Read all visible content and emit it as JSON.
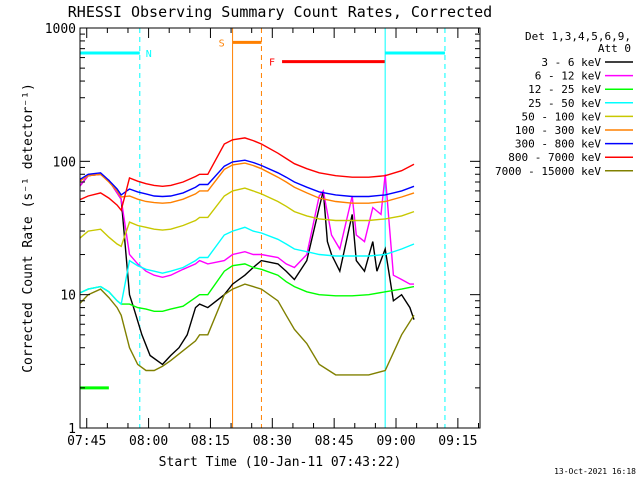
{
  "chart_data": {
    "type": "line",
    "title": "RHESSI Observing Summary Count Rates, Corrected",
    "xlabel": "Start Time (10-Jan-11 07:43:22)",
    "ylabel": "Corrected Count Rate (s⁻¹ detector⁻¹)",
    "yscale": "log",
    "ylim": [
      1,
      1000
    ],
    "xlim_minutes": [
      0,
      97
    ],
    "x_tick_labels": [
      "07:45",
      "08:00",
      "08:15",
      "08:30",
      "08:45",
      "09:00",
      "09:15"
    ],
    "y_tick_labels": [
      "1",
      "10",
      "100",
      "1000"
    ],
    "legend_header": [
      "Det 1,3,4,5,6,9,",
      "Att 0"
    ],
    "footer_date": "13-Oct-2021 16:18",
    "grid": false,
    "legend_position": "right",
    "series": [
      {
        "name": "3 - 6 keV",
        "color": "#000000",
        "points": [
          [
            -1,
            60
          ],
          [
            2,
            78
          ],
          [
            5,
            80
          ],
          [
            7,
            72
          ],
          [
            9,
            58
          ],
          [
            10,
            52
          ],
          [
            12,
            10
          ],
          [
            13,
            8
          ],
          [
            15,
            5
          ],
          [
            17,
            3.5
          ],
          [
            20,
            3
          ],
          [
            22,
            3.5
          ],
          [
            24,
            4
          ],
          [
            26,
            5
          ],
          [
            28,
            8
          ],
          [
            29,
            8.5
          ],
          [
            31,
            8
          ],
          [
            35,
            10
          ],
          [
            37,
            12
          ],
          [
            40,
            14
          ],
          [
            42,
            16
          ],
          [
            44,
            18
          ],
          [
            48,
            17
          ],
          [
            50,
            15
          ],
          [
            52,
            13
          ],
          [
            55,
            18
          ],
          [
            58,
            45
          ],
          [
            59,
            60
          ],
          [
            60,
            25
          ],
          [
            61,
            20
          ],
          [
            63,
            15
          ],
          [
            66,
            40
          ],
          [
            67,
            18
          ],
          [
            69,
            15
          ],
          [
            71,
            25
          ],
          [
            72,
            15
          ],
          [
            74,
            22
          ],
          [
            76,
            9
          ],
          [
            78,
            10
          ],
          [
            80,
            8
          ],
          [
            81,
            6.5
          ]
        ]
      },
      {
        "name": "6 - 12 keV",
        "color": "#ff00ff",
        "points": [
          [
            -1,
            60
          ],
          [
            2,
            78
          ],
          [
            5,
            80
          ],
          [
            7,
            72
          ],
          [
            9,
            58
          ],
          [
            10,
            52
          ],
          [
            12,
            20
          ],
          [
            14,
            17
          ],
          [
            16,
            15
          ],
          [
            18,
            14
          ],
          [
            20,
            13.5
          ],
          [
            22,
            14
          ],
          [
            25,
            15.5
          ],
          [
            28,
            17
          ],
          [
            29,
            18
          ],
          [
            31,
            17
          ],
          [
            35,
            18
          ],
          [
            37,
            20
          ],
          [
            40,
            21
          ],
          [
            42,
            20
          ],
          [
            44,
            20
          ],
          [
            48,
            19
          ],
          [
            50,
            17
          ],
          [
            52,
            16
          ],
          [
            55,
            20
          ],
          [
            58,
            55
          ],
          [
            59,
            60
          ],
          [
            61,
            28
          ],
          [
            63,
            22
          ],
          [
            66,
            55
          ],
          [
            67,
            28
          ],
          [
            69,
            25
          ],
          [
            71,
            45
          ],
          [
            73,
            40
          ],
          [
            74,
            80
          ],
          [
            76,
            14
          ],
          [
            78,
            13
          ],
          [
            80,
            12
          ],
          [
            81,
            12
          ]
        ]
      },
      {
        "name": "12 - 25 keV",
        "color": "#00ff00",
        "points": [
          [
            -1,
            10
          ],
          [
            2,
            11
          ],
          [
            5,
            11.5
          ],
          [
            7,
            10.5
          ],
          [
            9,
            9
          ],
          [
            10,
            8.5
          ],
          [
            12,
            8.5
          ],
          [
            14,
            8
          ],
          [
            16,
            7.8
          ],
          [
            18,
            7.5
          ],
          [
            20,
            7.5
          ],
          [
            22,
            7.8
          ],
          [
            25,
            8.2
          ],
          [
            28,
            9.5
          ],
          [
            29,
            10
          ],
          [
            31,
            10
          ],
          [
            35,
            15
          ],
          [
            37,
            16.5
          ],
          [
            40,
            17
          ],
          [
            42,
            16
          ],
          [
            44,
            15.5
          ],
          [
            48,
            14
          ],
          [
            50,
            12.5
          ],
          [
            52,
            11.5
          ],
          [
            55,
            10.5
          ],
          [
            58,
            10
          ],
          [
            62,
            9.8
          ],
          [
            66,
            9.8
          ],
          [
            70,
            10
          ],
          [
            74,
            10.5
          ],
          [
            78,
            11
          ],
          [
            81,
            11.5
          ]
        ]
      },
      {
        "name": "25 - 50 keV",
        "color": "#00ffff",
        "points": [
          [
            -1,
            10
          ],
          [
            2,
            11
          ],
          [
            5,
            11.5
          ],
          [
            7,
            10.5
          ],
          [
            9,
            9
          ],
          [
            10,
            8.5
          ],
          [
            12,
            18
          ],
          [
            14,
            16.5
          ],
          [
            16,
            15.5
          ],
          [
            18,
            15
          ],
          [
            20,
            14.5
          ],
          [
            22,
            15
          ],
          [
            25,
            16
          ],
          [
            28,
            18
          ],
          [
            29,
            19
          ],
          [
            31,
            19
          ],
          [
            35,
            28
          ],
          [
            37,
            30
          ],
          [
            40,
            32
          ],
          [
            42,
            30
          ],
          [
            44,
            29
          ],
          [
            48,
            26
          ],
          [
            50,
            24
          ],
          [
            52,
            22
          ],
          [
            55,
            21
          ],
          [
            58,
            20
          ],
          [
            62,
            19.5
          ],
          [
            66,
            19.5
          ],
          [
            70,
            19.5
          ],
          [
            74,
            20
          ],
          [
            78,
            22
          ],
          [
            81,
            24
          ]
        ]
      },
      {
        "name": "50 - 100 keV",
        "color": "#c8c800",
        "points": [
          [
            -1,
            25
          ],
          [
            2,
            30
          ],
          [
            5,
            31
          ],
          [
            7,
            27
          ],
          [
            9,
            24
          ],
          [
            10,
            23
          ],
          [
            12,
            35
          ],
          [
            14,
            33
          ],
          [
            16,
            32
          ],
          [
            18,
            31
          ],
          [
            20,
            30.5
          ],
          [
            22,
            31
          ],
          [
            25,
            33
          ],
          [
            28,
            36
          ],
          [
            29,
            38
          ],
          [
            31,
            38
          ],
          [
            35,
            55
          ],
          [
            37,
            60
          ],
          [
            40,
            63
          ],
          [
            42,
            60
          ],
          [
            44,
            57
          ],
          [
            48,
            50
          ],
          [
            50,
            46
          ],
          [
            52,
            42
          ],
          [
            55,
            39
          ],
          [
            58,
            37
          ],
          [
            62,
            36
          ],
          [
            66,
            36
          ],
          [
            70,
            36
          ],
          [
            74,
            37
          ],
          [
            78,
            39
          ],
          [
            81,
            42
          ]
        ]
      },
      {
        "name": "100 - 300 keV",
        "color": "#ff8000",
        "points": [
          [
            -1,
            68
          ],
          [
            2,
            78
          ],
          [
            5,
            80
          ],
          [
            7,
            70
          ],
          [
            9,
            60
          ],
          [
            10,
            54
          ],
          [
            12,
            55
          ],
          [
            14,
            52
          ],
          [
            16,
            50
          ],
          [
            18,
            49
          ],
          [
            20,
            48.5
          ],
          [
            22,
            49
          ],
          [
            25,
            52
          ],
          [
            28,
            57
          ],
          [
            29,
            60
          ],
          [
            31,
            60
          ],
          [
            35,
            87
          ],
          [
            37,
            94
          ],
          [
            40,
            97
          ],
          [
            42,
            93
          ],
          [
            44,
            88
          ],
          [
            48,
            76
          ],
          [
            50,
            70
          ],
          [
            52,
            64
          ],
          [
            55,
            58
          ],
          [
            58,
            53
          ],
          [
            62,
            50
          ],
          [
            66,
            48.5
          ],
          [
            70,
            48.5
          ],
          [
            74,
            50
          ],
          [
            78,
            54
          ],
          [
            81,
            58
          ]
        ]
      },
      {
        "name": "300 - 800 keV",
        "color": "#0000ff",
        "points": [
          [
            -1,
            70
          ],
          [
            2,
            80
          ],
          [
            5,
            82
          ],
          [
            7,
            72
          ],
          [
            9,
            62
          ],
          [
            10,
            56
          ],
          [
            12,
            62
          ],
          [
            14,
            59
          ],
          [
            16,
            57
          ],
          [
            18,
            55
          ],
          [
            20,
            54.5
          ],
          [
            22,
            55
          ],
          [
            25,
            58
          ],
          [
            28,
            64
          ],
          [
            29,
            67
          ],
          [
            31,
            67
          ],
          [
            35,
            92
          ],
          [
            37,
            99
          ],
          [
            40,
            102
          ],
          [
            42,
            98
          ],
          [
            44,
            93
          ],
          [
            48,
            82
          ],
          [
            50,
            76
          ],
          [
            52,
            70
          ],
          [
            55,
            64
          ],
          [
            58,
            59
          ],
          [
            62,
            56
          ],
          [
            66,
            54.5
          ],
          [
            70,
            54.5
          ],
          [
            74,
            56
          ],
          [
            78,
            60
          ],
          [
            81,
            65
          ]
        ]
      },
      {
        "name": "800 - 7000 keV",
        "color": "#ff0000",
        "points": [
          [
            -1,
            50
          ],
          [
            2,
            55
          ],
          [
            5,
            58
          ],
          [
            7,
            53
          ],
          [
            9,
            47
          ],
          [
            10,
            43
          ],
          [
            12,
            75
          ],
          [
            14,
            71
          ],
          [
            16,
            68
          ],
          [
            18,
            66
          ],
          [
            20,
            65
          ],
          [
            22,
            66
          ],
          [
            25,
            70
          ],
          [
            28,
            77
          ],
          [
            29,
            80
          ],
          [
            31,
            80
          ],
          [
            35,
            135
          ],
          [
            37,
            145
          ],
          [
            40,
            150
          ],
          [
            42,
            143
          ],
          [
            44,
            135
          ],
          [
            48,
            115
          ],
          [
            50,
            105
          ],
          [
            52,
            96
          ],
          [
            55,
            88
          ],
          [
            58,
            82
          ],
          [
            62,
            78
          ],
          [
            66,
            76
          ],
          [
            70,
            76
          ],
          [
            74,
            78
          ],
          [
            78,
            85
          ],
          [
            81,
            95
          ]
        ]
      },
      {
        "name": "7000 - 15000 keV",
        "color": "#808000",
        "points": [
          [
            -1,
            8
          ],
          [
            2,
            10
          ],
          [
            5,
            11
          ],
          [
            7,
            9.5
          ],
          [
            9,
            8
          ],
          [
            10,
            7
          ],
          [
            12,
            4
          ],
          [
            14,
            3
          ],
          [
            16,
            2.7
          ],
          [
            18,
            2.7
          ],
          [
            20,
            2.9
          ],
          [
            22,
            3.2
          ],
          [
            25,
            3.8
          ],
          [
            28,
            4.5
          ],
          [
            29,
            5
          ],
          [
            31,
            5
          ],
          [
            35,
            10
          ],
          [
            37,
            11
          ],
          [
            40,
            12
          ],
          [
            42,
            11.5
          ],
          [
            44,
            11
          ],
          [
            48,
            9
          ],
          [
            50,
            7
          ],
          [
            52,
            5.5
          ],
          [
            55,
            4.3
          ],
          [
            58,
            3
          ],
          [
            62,
            2.5
          ],
          [
            66,
            2.5
          ],
          [
            70,
            2.5
          ],
          [
            74,
            2.7
          ],
          [
            78,
            5
          ],
          [
            81,
            7
          ]
        ]
      }
    ],
    "attenuator_bars": [
      {
        "label": "N",
        "color": "#00ffff",
        "ranges": [
          [
            -1,
            14.5
          ],
          [
            74,
            88.5
          ]
        ],
        "level": 650
      },
      {
        "label": "S",
        "color": "#ff8000",
        "ranges": [
          [
            37,
            44
          ]
        ],
        "level": 780
      },
      {
        "label": "F",
        "color": "#ff0000",
        "ranges": [
          [
            49,
            74
          ]
        ],
        "level": 560
      },
      {
        "label": "",
        "color": "#00ff00",
        "ranges": [
          [
            -1,
            7
          ]
        ],
        "level": 2
      }
    ],
    "markers": [
      {
        "minute": 14.5,
        "color": "#00ffff",
        "style": "dashed"
      },
      {
        "minute": 37,
        "color": "#ff8000",
        "style": "solid"
      },
      {
        "minute": 44,
        "color": "#ff8000",
        "style": "dashed"
      },
      {
        "minute": 74,
        "color": "#00ffff",
        "style": "solid"
      },
      {
        "minute": 88.5,
        "color": "#00ffff",
        "style": "dashed"
      }
    ]
  }
}
